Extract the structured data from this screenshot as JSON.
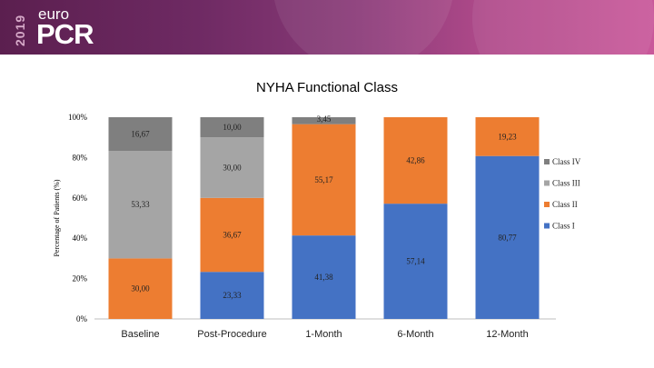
{
  "header": {
    "year": "2019",
    "brand_top": "euro",
    "brand_main": "PCR"
  },
  "chart_data": {
    "type": "bar",
    "stacked": true,
    "title": "NYHA Functional Class",
    "ylabel": "Percentage of Patients (%)",
    "xlabel": "",
    "categories": [
      "Baseline",
      "Post-Procedure",
      "1-Month",
      "6-Month",
      "12-Month"
    ],
    "ylim": [
      0,
      100
    ],
    "yticks": [
      "0%",
      "20%",
      "40%",
      "60%",
      "80%",
      "100%"
    ],
    "grid": false,
    "legend_position": "right",
    "series": [
      {
        "name": "Class I",
        "color": "#4472c4",
        "values": [
          0,
          23.33,
          41.38,
          57.14,
          80.77
        ],
        "labels": [
          "",
          "23,33",
          "41,38",
          "57,14",
          "80,77"
        ]
      },
      {
        "name": "Class II",
        "color": "#ed7d31",
        "values": [
          30,
          36.67,
          55.17,
          42.86,
          19.23
        ],
        "labels": [
          "30,00",
          "36,67",
          "55,17",
          "42,86",
          "19,23"
        ]
      },
      {
        "name": "Class III",
        "color": "#a5a5a5",
        "values": [
          53.33,
          30,
          0,
          0,
          0
        ],
        "labels": [
          "53,33",
          "30,00",
          "",
          "",
          ""
        ]
      },
      {
        "name": "Class IV",
        "color": "#7f7f7f",
        "values": [
          16.67,
          10,
          3.45,
          0,
          0
        ],
        "labels": [
          "16,67",
          "10,00",
          "3,45",
          "",
          ""
        ]
      }
    ]
  }
}
